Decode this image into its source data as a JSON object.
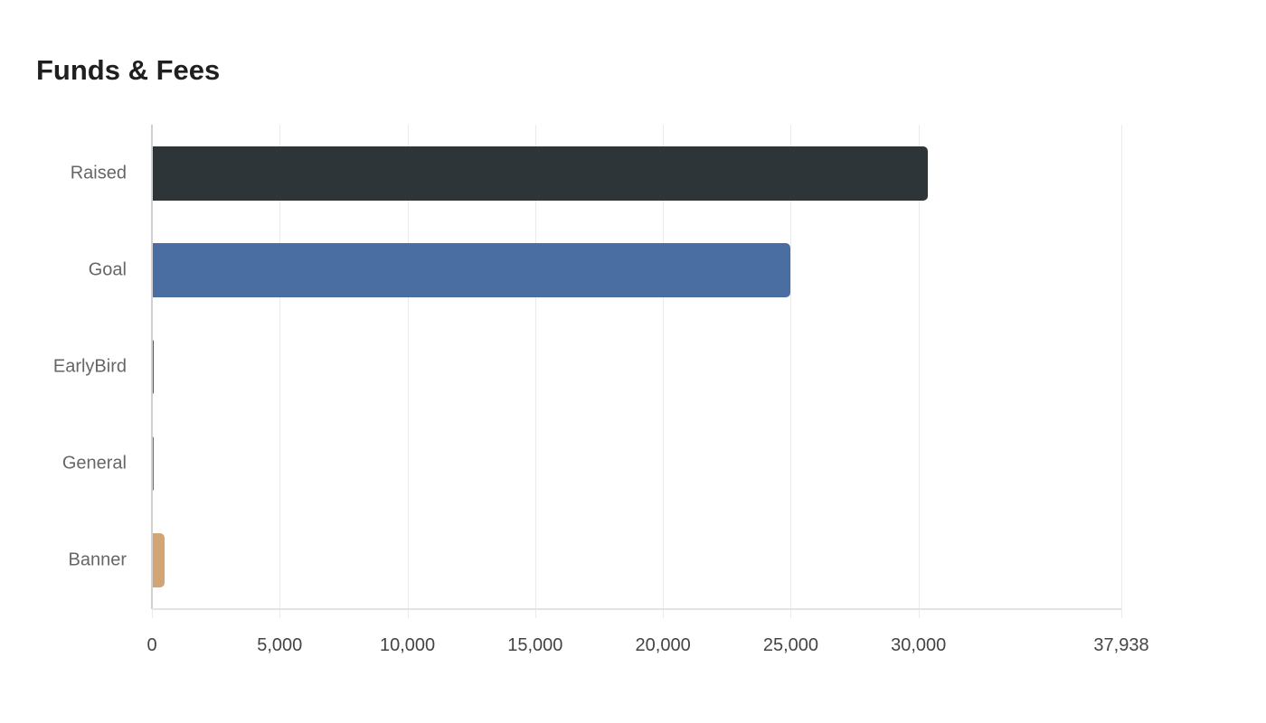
{
  "chart_data": {
    "type": "bar",
    "orientation": "horizontal",
    "title": "Funds & Fees",
    "xlabel": "",
    "ylabel": "",
    "categories": [
      "Raised",
      "Goal",
      "EarlyBird",
      "General",
      "Banner"
    ],
    "values": [
      30350,
      25000,
      75,
      50,
      500
    ],
    "colors": [
      "#2e3538",
      "#4a6ea1",
      "#1f6a94",
      "#6e6e6e",
      "#d4a574"
    ],
    "xlim": [
      0,
      37938
    ],
    "xticks": [
      0,
      5000,
      10000,
      15000,
      20000,
      25000,
      30000,
      37938
    ],
    "xtick_labels": [
      "0",
      "5,000",
      "10,000",
      "15,000",
      "20,000",
      "25,000",
      "30,000",
      "37,938"
    ],
    "grid": true,
    "legend": null,
    "data_labels": [
      "30,350",
      "25,000",
      "75",
      "50",
      "500"
    ]
  },
  "title": "Funds & Fees"
}
